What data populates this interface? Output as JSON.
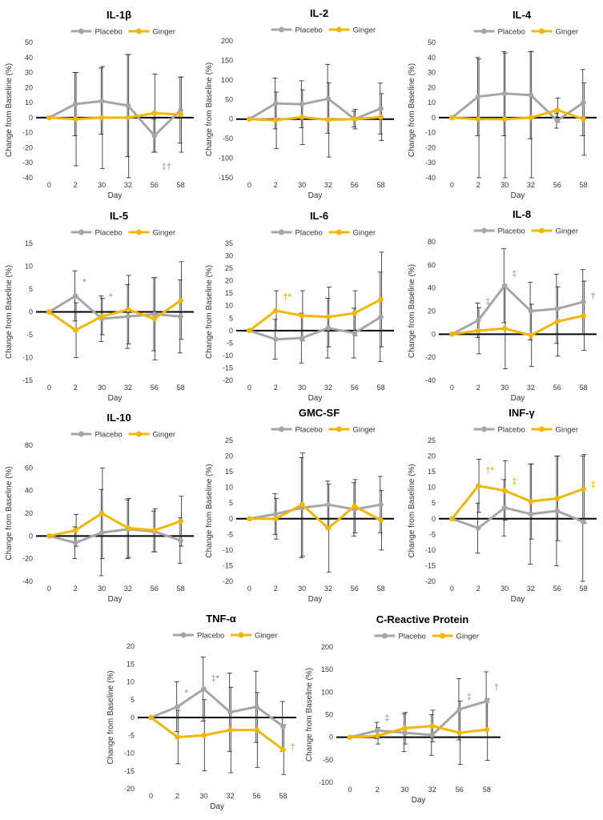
{
  "series_colors": {
    "placebo": "#a6a6a6",
    "ginger": "#f2b705",
    "axis": "#000000",
    "ink": "#333333"
  },
  "legend": {
    "placebo": "Placebo",
    "ginger": "Ginger"
  },
  "chart_data": [
    {
      "type": "line",
      "title": "IL-1β",
      "xlabel": "Day",
      "ylabel": "Change from Baseline (%)",
      "categories": [
        "0",
        "2",
        "30",
        "32",
        "56",
        "58"
      ],
      "ylim": [
        -40,
        50
      ],
      "ystep": 10,
      "series": [
        {
          "name": "Placebo",
          "values": [
            0,
            9,
            11,
            8,
            -12,
            5
          ],
          "err": [
            0,
            21,
            22,
            34,
            11,
            22
          ]
        },
        {
          "name": "Ginger",
          "values": [
            0,
            -1,
            0,
            0,
            3,
            2
          ],
          "err": [
            0,
            31,
            34,
            42,
            26,
            25
          ]
        }
      ],
      "annotations": [
        {
          "text": "‡†",
          "series": "Placebo",
          "index": 4,
          "dy": 42
        }
      ]
    },
    {
      "type": "line",
      "title": "IL-2",
      "xlabel": "Day",
      "ylabel": "Change from Baseline (%)",
      "categories": [
        "0",
        "2",
        "30",
        "32",
        "56",
        "58"
      ],
      "ylim": [
        -150,
        200
      ],
      "ystep": 50,
      "series": [
        {
          "name": "Placebo",
          "values": [
            0,
            40,
            38,
            52,
            0,
            27
          ],
          "err": [
            0,
            65,
            60,
            88,
            20,
            65
          ]
        },
        {
          "name": "Ginger",
          "values": [
            0,
            -3,
            5,
            -2,
            0,
            5
          ],
          "err": [
            0,
            72,
            70,
            95,
            25,
            60
          ]
        }
      ],
      "annotations": []
    },
    {
      "type": "line",
      "title": "IL-4",
      "xlabel": "Day",
      "ylabel": "Change from Baseline (%)",
      "categories": [
        "0",
        "2",
        "30",
        "32",
        "56",
        "58"
      ],
      "ylim": [
        -40,
        50
      ],
      "ystep": 10,
      "series": [
        {
          "name": "Placebo",
          "values": [
            0,
            14,
            16,
            15,
            -2,
            10
          ],
          "err": [
            0,
            26,
            28,
            29,
            5,
            22
          ]
        },
        {
          "name": "Ginger",
          "values": [
            0,
            -1,
            -1,
            0,
            5,
            -1
          ],
          "err": [
            0,
            40,
            44,
            44,
            8,
            24
          ]
        }
      ],
      "annotations": []
    },
    {
      "type": "line",
      "title": "IL-5",
      "xlabel": "Day",
      "ylabel": "Change from Baseline (%)",
      "categories": [
        "0",
        "2",
        "30",
        "32",
        "56",
        "58"
      ],
      "ylim": [
        -15,
        15
      ],
      "ystep": 5,
      "series": [
        {
          "name": "Placebo",
          "values": [
            0,
            3.5,
            -1.5,
            -1,
            -0.5,
            -1
          ],
          "err": [
            0,
            5.5,
            5,
            7,
            8,
            8
          ]
        },
        {
          "name": "Ginger",
          "values": [
            0,
            -4,
            -1,
            0.5,
            -1.5,
            2.5
          ],
          "err": [
            0,
            6,
            4,
            7.5,
            9,
            8.5
          ]
        }
      ],
      "annotations": [
        {
          "text": "*",
          "series": "Placebo",
          "index": 2,
          "dy": -24
        },
        {
          "text": "*",
          "series": "Placebo",
          "index": 1,
          "dy": -14
        }
      ]
    },
    {
      "type": "line",
      "title": "IL-6",
      "xlabel": "Day",
      "ylabel": "Change from Baseline (%)",
      "categories": [
        "0",
        "2",
        "30",
        "32",
        "56",
        "58"
      ],
      "ylim": [
        -20,
        35
      ],
      "ystep": 5,
      "series": [
        {
          "name": "Placebo",
          "values": [
            0,
            -3.5,
            -3,
            1,
            -1,
            5.5
          ],
          "err": [
            0,
            8,
            10,
            12,
            10,
            18
          ]
        },
        {
          "name": "Ginger",
          "values": [
            0,
            8,
            6,
            5.5,
            7,
            12.5
          ],
          "err": [
            0,
            8,
            10,
            12,
            9,
            19
          ]
        }
      ],
      "annotations": [
        {
          "text": "†*",
          "series": "Ginger",
          "index": 1,
          "dy": -14
        }
      ]
    },
    {
      "type": "line",
      "title": "IL-8",
      "xlabel": "Day",
      "ylabel": "Change from Baseline (%)",
      "categories": [
        "0",
        "2",
        "30",
        "32",
        "56",
        "58"
      ],
      "ylim": [
        -40,
        80
      ],
      "ystep": 20,
      "series": [
        {
          "name": "Placebo",
          "values": [
            0,
            12,
            42,
            20,
            22,
            28
          ],
          "err": [
            0,
            15,
            32,
            25,
            30,
            28
          ]
        },
        {
          "name": "Ginger",
          "values": [
            0,
            3,
            5,
            -1,
            11,
            16
          ],
          "err": [
            0,
            20,
            35,
            27,
            30,
            30
          ]
        }
      ],
      "annotations": [
        {
          "text": "‡",
          "series": "Placebo",
          "index": 1,
          "dy": -20
        },
        {
          "text": "‡",
          "series": "Placebo",
          "index": 2,
          "dy": -12
        },
        {
          "text": "†",
          "series": "Placebo",
          "index": 5,
          "dy": -4
        }
      ]
    },
    {
      "type": "line",
      "title": "IL-10",
      "xlabel": "Day",
      "ylabel": "Change from Baseline (%)",
      "categories": [
        "0",
        "2",
        "30",
        "32",
        "56",
        "58"
      ],
      "ylim": [
        -40,
        80
      ],
      "ystep": 20,
      "series": [
        {
          "name": "Placebo",
          "values": [
            0,
            -6,
            3,
            6,
            4,
            -4
          ],
          "err": [
            0,
            14,
            38,
            26,
            18,
            20
          ]
        },
        {
          "name": "Ginger",
          "values": [
            0,
            5,
            20,
            7,
            5,
            13
          ],
          "err": [
            0,
            14,
            40,
            26,
            19,
            22
          ]
        }
      ],
      "annotations": []
    },
    {
      "type": "line",
      "title": "GMC-SF",
      "xlabel": "Day",
      "ylabel": "Change from Baseline (%)",
      "categories": [
        "0",
        "2",
        "30",
        "32",
        "56",
        "58"
      ],
      "ylim": [
        -20,
        25
      ],
      "ystep": 5,
      "series": [
        {
          "name": "Placebo",
          "values": [
            0,
            1.5,
            3.5,
            4.5,
            3,
            4.5
          ],
          "err": [
            0,
            6.5,
            16,
            7.5,
            8.5,
            9
          ]
        },
        {
          "name": "Ginger",
          "values": [
            0,
            0,
            4.5,
            -3,
            4,
            -0.5
          ],
          "err": [
            0,
            6.5,
            16.5,
            14,
            8.5,
            9.5
          ]
        }
      ],
      "annotations": []
    },
    {
      "type": "line",
      "title": "INF-γ",
      "xlabel": "Day",
      "ylabel": "Change from Baseline (%)",
      "categories": [
        "0",
        "2",
        "30",
        "32",
        "56",
        "58"
      ],
      "ylim": [
        -20,
        25
      ],
      "ystep": 5,
      "series": [
        {
          "name": "Placebo",
          "values": [
            0,
            -3,
            3.5,
            1.5,
            2.5,
            -1
          ],
          "err": [
            0,
            8,
            9,
            16,
            17.5,
            21
          ]
        },
        {
          "name": "Ginger",
          "values": [
            0,
            10.5,
            9,
            5.5,
            6.5,
            9.5
          ],
          "err": [
            0,
            8.5,
            9.5,
            12,
            13.5,
            11
          ]
        }
      ],
      "annotations": [
        {
          "text": "†*",
          "series": "Ginger",
          "index": 1,
          "dy": -16
        },
        {
          "text": "‡",
          "series": "Ginger",
          "index": 2,
          "dy": -8
        },
        {
          "text": "‡",
          "series": "Ginger",
          "index": 5,
          "dy": -2
        }
      ]
    },
    {
      "type": "line",
      "title": "TNF-α",
      "xlabel": "Day",
      "ylabel": "Change from Baseline (%)",
      "categories": [
        "0",
        "2",
        "30",
        "32",
        "56",
        "58"
      ],
      "ylim": [
        -20,
        20
      ],
      "ystep": 5,
      "series": [
        {
          "name": "Placebo",
          "values": [
            0,
            3,
            8,
            1.5,
            3,
            -2.5
          ],
          "err": [
            0,
            7,
            9,
            11,
            10,
            7
          ]
        },
        {
          "name": "Ginger",
          "values": [
            0,
            -5.5,
            -5,
            -3.5,
            -3.5,
            -9
          ],
          "err": [
            0,
            7.5,
            10,
            12,
            10.5,
            7
          ]
        }
      ],
      "annotations": [
        {
          "text": "*",
          "series": "Placebo",
          "index": 1,
          "dy": -14
        },
        {
          "text": "‡*",
          "series": "Placebo",
          "index": 2,
          "dy": -10
        },
        {
          "text": "†",
          "series": "Ginger",
          "index": 5,
          "dy": 0
        }
      ]
    },
    {
      "type": "line",
      "title": "C-Reactive Protein",
      "xlabel": "Day",
      "ylabel": "Change from Baseline (%)",
      "categories": [
        "0",
        "2",
        "30",
        "32",
        "56",
        "58"
      ],
      "ylim": [
        -100,
        200
      ],
      "ystep": 50,
      "series": [
        {
          "name": "Placebo",
          "values": [
            0,
            15,
            10,
            5,
            62,
            80
          ],
          "err": [
            0,
            18,
            42,
            45,
            68,
            65
          ]
        },
        {
          "name": "Ginger",
          "values": [
            0,
            3,
            20,
            25,
            10,
            17
          ],
          "err": [
            0,
            18,
            35,
            35,
            70,
            68
          ]
        }
      ],
      "annotations": [
        {
          "text": "‡",
          "series": "Placebo",
          "index": 1,
          "dy": -12
        },
        {
          "text": "‡",
          "series": "Placebo",
          "index": 4,
          "dy": -12
        },
        {
          "text": "†",
          "series": "Placebo",
          "index": 5,
          "dy": -14
        }
      ]
    }
  ]
}
